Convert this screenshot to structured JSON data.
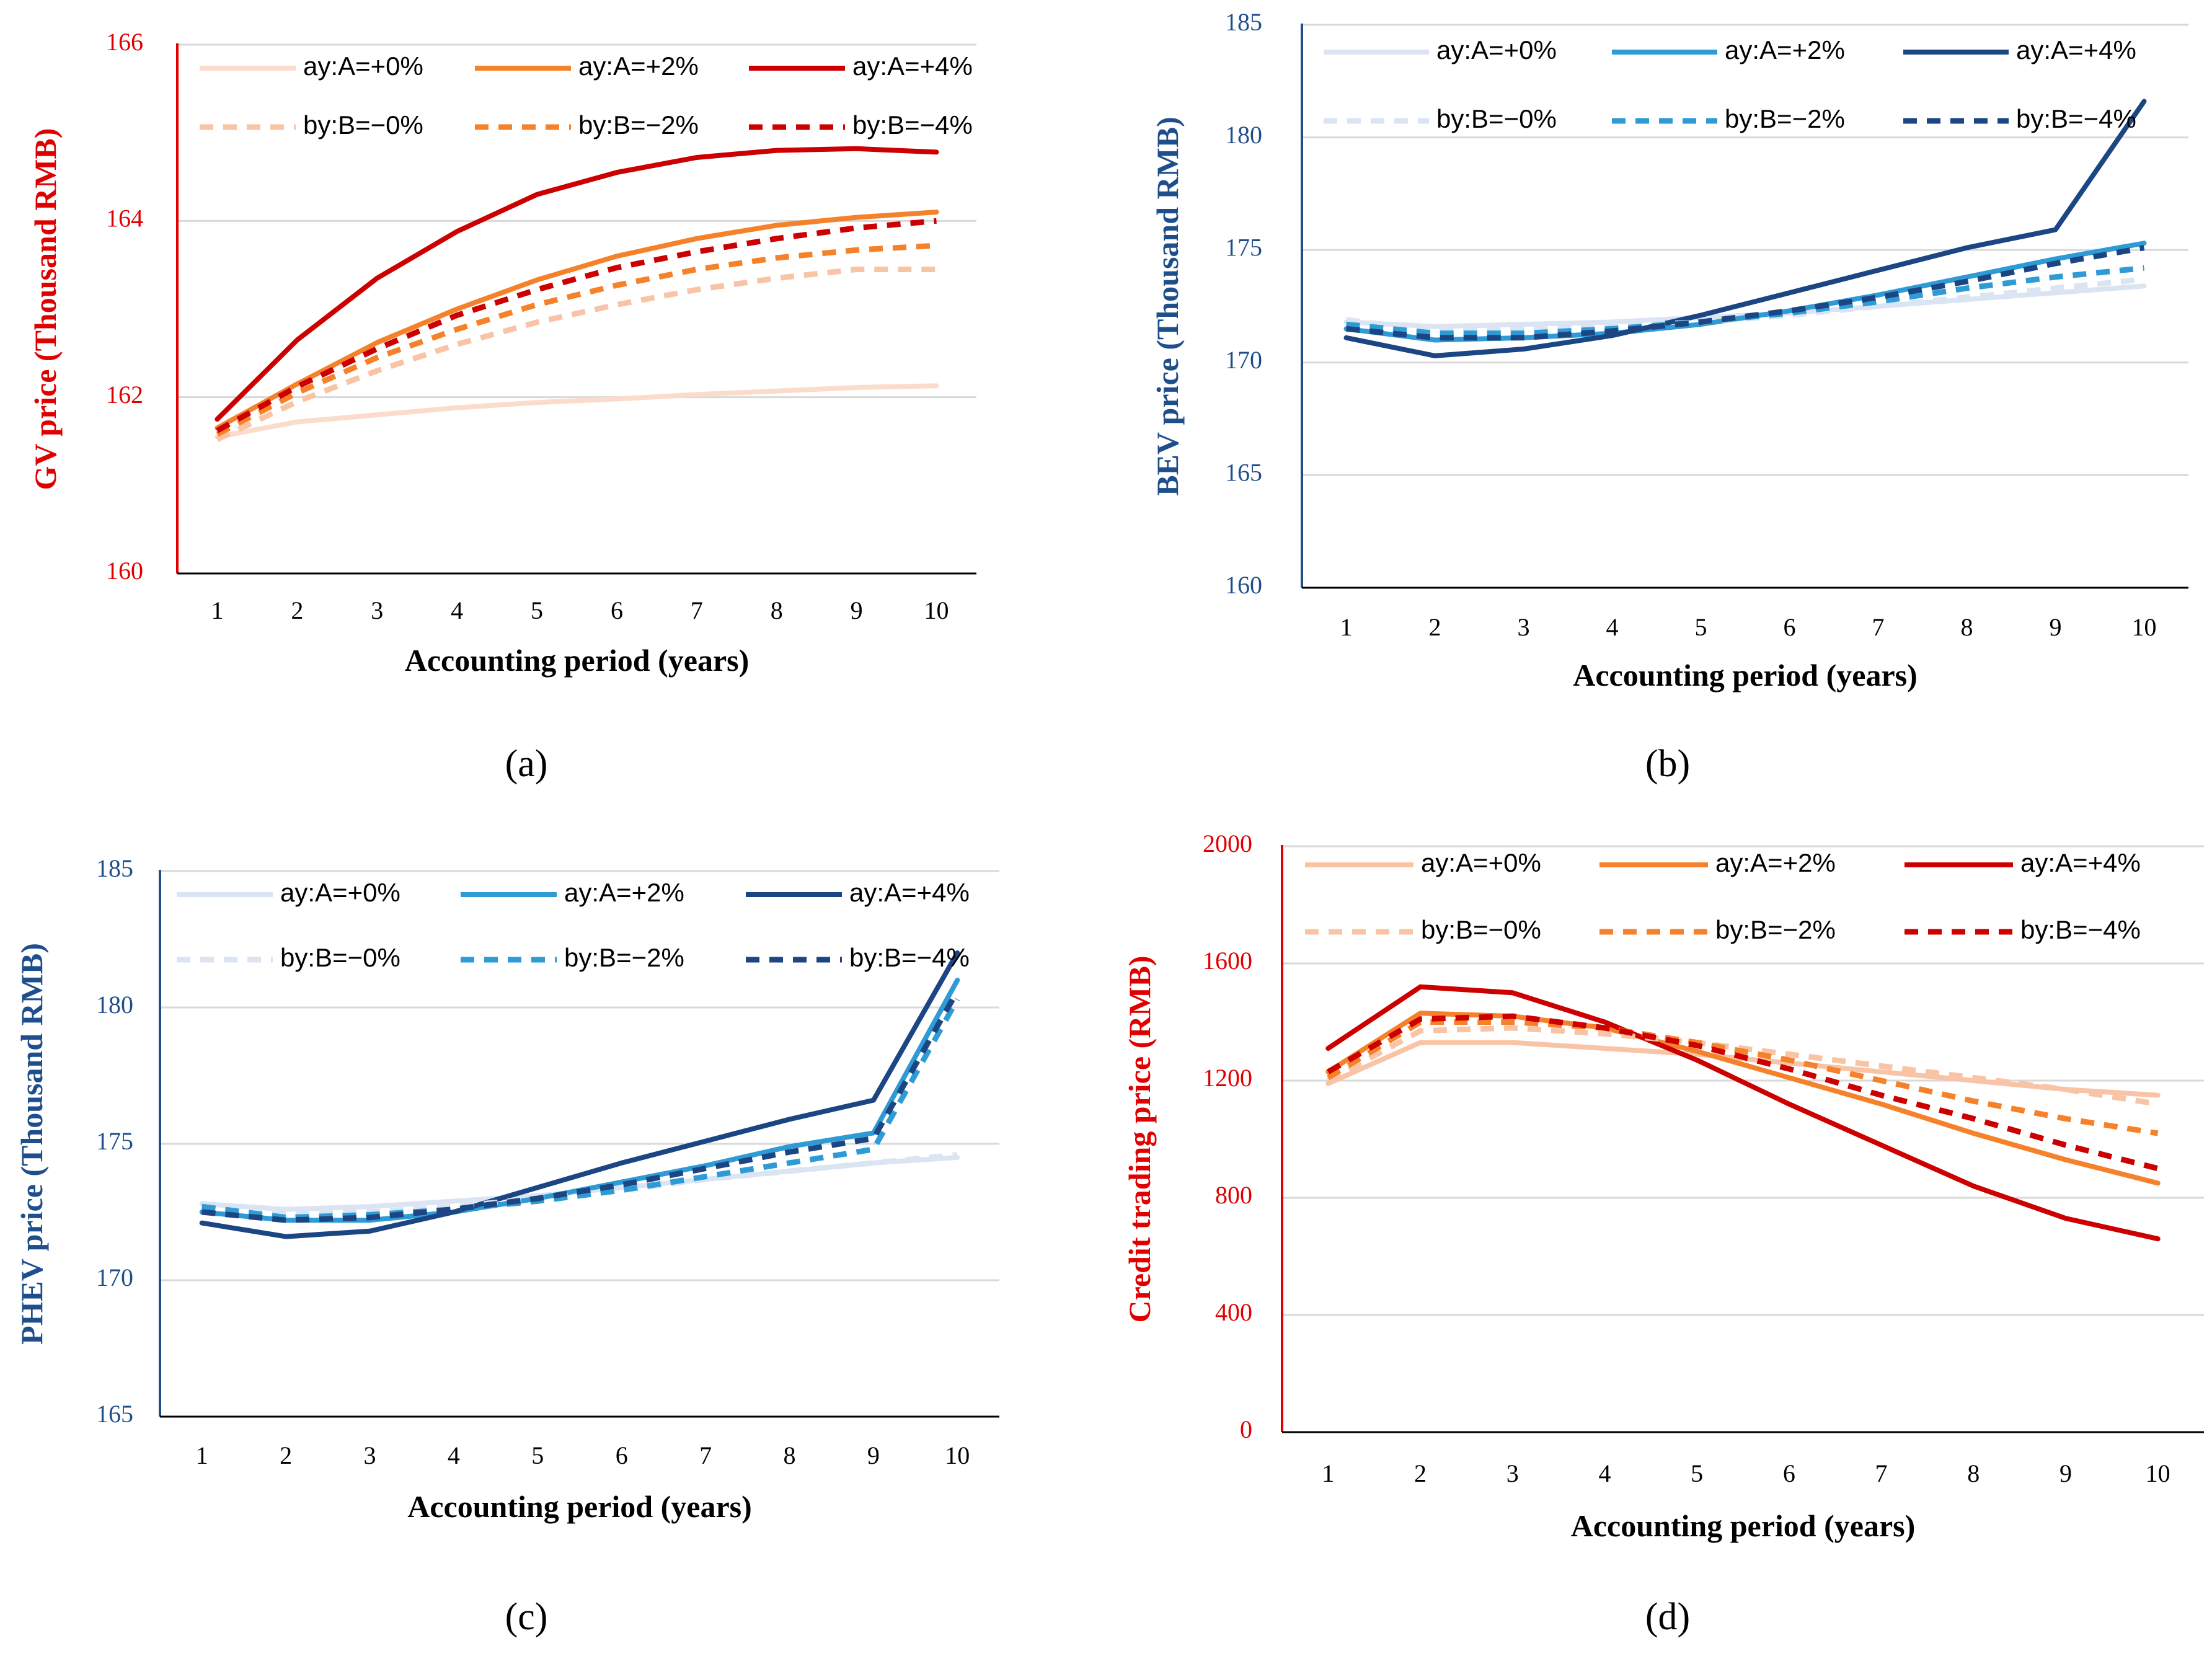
{
  "figure": {
    "xlabel": "Accounting period (years)",
    "legend_labels": [
      "ay:A=+0%",
      "ay:A=+2%",
      "ay:A=+4%",
      "by:B=−0%",
      "by:B=−2%",
      "by:B=−4%"
    ]
  },
  "chart_data": [
    {
      "id": "a",
      "panel_label": "(a)",
      "type": "line",
      "ylabel": "GV price (Thousand RMB)",
      "xlabel": "Accounting period (years)",
      "x": [
        1,
        2,
        3,
        4,
        5,
        6,
        7,
        8,
        9,
        10
      ],
      "ylim": [
        160,
        166
      ],
      "yticks": [
        160,
        162,
        164,
        166
      ],
      "grid": true,
      "axis_color": "#e00000",
      "series": [
        {
          "name": "ay:A=+0%",
          "color": "#fbdccb",
          "dash": false,
          "values": [
            161.55,
            161.72,
            161.8,
            161.88,
            161.94,
            161.98,
            162.03,
            162.07,
            162.11,
            162.13
          ]
        },
        {
          "name": "ay:A=+2%",
          "color": "#f5822a",
          "dash": false,
          "values": [
            161.65,
            162.15,
            162.62,
            163.0,
            163.33,
            163.6,
            163.8,
            163.95,
            164.04,
            164.1
          ]
        },
        {
          "name": "ay:A=+4%",
          "color": "#cc0000",
          "dash": false,
          "values": [
            161.75,
            162.65,
            163.35,
            163.88,
            164.3,
            164.55,
            164.72,
            164.8,
            164.82,
            164.78
          ]
        },
        {
          "name": "by:B=−0%",
          "color": "#f9c4a6",
          "dash": true,
          "values": [
            161.52,
            161.95,
            162.3,
            162.6,
            162.85,
            163.05,
            163.22,
            163.35,
            163.45,
            163.45
          ]
        },
        {
          "name": "by:B=−2%",
          "color": "#f5822a",
          "dash": true,
          "values": [
            161.58,
            162.05,
            162.45,
            162.77,
            163.05,
            163.27,
            163.45,
            163.58,
            163.67,
            163.72
          ]
        },
        {
          "name": "by:B=−4%",
          "color": "#cc0000",
          "dash": true,
          "values": [
            161.62,
            162.12,
            162.55,
            162.93,
            163.22,
            163.47,
            163.65,
            163.8,
            163.92,
            164.0
          ]
        }
      ]
    },
    {
      "id": "b",
      "panel_label": "(b)",
      "type": "line",
      "ylabel": "BEV price (Thousand RMB)",
      "xlabel": "Accounting period (years)",
      "x": [
        1,
        2,
        3,
        4,
        5,
        6,
        7,
        8,
        9,
        10
      ],
      "ylim": [
        160,
        185
      ],
      "yticks": [
        160,
        165,
        170,
        175,
        180,
        185
      ],
      "grid": true,
      "axis_color": "#1f4e8c",
      "series": [
        {
          "name": "ay:A=+0%",
          "color": "#dbe4f2",
          "dash": false,
          "values": [
            171.8,
            171.6,
            171.7,
            171.8,
            172.0,
            172.2,
            172.5,
            172.8,
            173.1,
            173.4
          ]
        },
        {
          "name": "ay:A=+2%",
          "color": "#2e9bd6",
          "dash": false,
          "values": [
            171.5,
            171.0,
            171.1,
            171.3,
            171.7,
            172.3,
            173.0,
            173.8,
            174.6,
            175.3
          ]
        },
        {
          "name": "ay:A=+4%",
          "color": "#1b4683",
          "dash": false,
          "values": [
            171.1,
            170.3,
            170.6,
            171.2,
            172.1,
            173.1,
            174.1,
            175.1,
            175.9,
            181.6
          ]
        },
        {
          "name": "by:B=−0%",
          "color": "#dbe4f2",
          "dash": true,
          "values": [
            171.9,
            171.4,
            171.5,
            171.6,
            171.8,
            172.1,
            172.5,
            172.9,
            173.3,
            173.7
          ]
        },
        {
          "name": "by:B=−2%",
          "color": "#2e9bd6",
          "dash": true,
          "values": [
            171.7,
            171.3,
            171.3,
            171.5,
            171.8,
            172.2,
            172.7,
            173.3,
            173.8,
            174.2
          ]
        },
        {
          "name": "by:B=−4%",
          "color": "#1b4683",
          "dash": true,
          "values": [
            171.5,
            171.1,
            171.1,
            171.4,
            171.8,
            172.3,
            172.9,
            173.6,
            174.4,
            175.1
          ]
        }
      ]
    },
    {
      "id": "c",
      "panel_label": "(c)",
      "type": "line",
      "ylabel": "PHEV price (Thousand RMB)",
      "xlabel": "Accounting period (years)",
      "x": [
        1,
        2,
        3,
        4,
        5,
        6,
        7,
        8,
        9,
        10
      ],
      "ylim": [
        165,
        185
      ],
      "yticks": [
        165,
        170,
        175,
        180,
        185
      ],
      "grid": true,
      "axis_color": "#1f4e8c",
      "series": [
        {
          "name": "ay:A=+0%",
          "color": "#dbe4f2",
          "dash": false,
          "values": [
            172.8,
            172.6,
            172.7,
            172.9,
            173.1,
            173.4,
            173.7,
            174.0,
            174.3,
            174.5
          ]
        },
        {
          "name": "ay:A=+2%",
          "color": "#2e9bd6",
          "dash": false,
          "values": [
            172.5,
            172.2,
            172.2,
            172.5,
            173.0,
            173.6,
            174.2,
            174.9,
            175.4,
            181.0
          ]
        },
        {
          "name": "ay:A=+4%",
          "color": "#1b4683",
          "dash": false,
          "values": [
            172.1,
            171.6,
            171.8,
            172.5,
            173.4,
            174.3,
            175.1,
            175.9,
            176.6,
            182.0
          ]
        },
        {
          "name": "by:B=−0%",
          "color": "#dbe4f2",
          "dash": true,
          "values": [
            172.8,
            172.5,
            172.5,
            172.7,
            173.0,
            173.3,
            173.7,
            174.0,
            174.3,
            174.6
          ]
        },
        {
          "name": "by:B=−2%",
          "color": "#2e9bd6",
          "dash": true,
          "values": [
            172.7,
            172.3,
            172.4,
            172.6,
            172.9,
            173.3,
            173.8,
            174.3,
            174.8,
            180.3
          ]
        },
        {
          "name": "by:B=−4%",
          "color": "#1b4683",
          "dash": true,
          "values": [
            172.5,
            172.2,
            172.3,
            172.6,
            173.0,
            173.5,
            174.1,
            174.7,
            175.2,
            180.6
          ]
        }
      ]
    },
    {
      "id": "d",
      "panel_label": "(d)",
      "type": "line",
      "ylabel": "Credit trading price (RMB)",
      "xlabel": "Accounting period (years)",
      "x": [
        1,
        2,
        3,
        4,
        5,
        6,
        7,
        8,
        9,
        10
      ],
      "ylim": [
        0,
        2000
      ],
      "yticks": [
        0,
        400,
        800,
        1200,
        1600,
        2000
      ],
      "grid": true,
      "axis_color": "#e00000",
      "series": [
        {
          "name": "ay:A=+0%",
          "color": "#f9c4a6",
          "dash": false,
          "values": [
            1190,
            1330,
            1330,
            1310,
            1290,
            1260,
            1230,
            1200,
            1170,
            1150
          ]
        },
        {
          "name": "ay:A=+2%",
          "color": "#f5822a",
          "dash": false,
          "values": [
            1230,
            1430,
            1420,
            1380,
            1300,
            1210,
            1120,
            1020,
            930,
            850
          ]
        },
        {
          "name": "ay:A=+4%",
          "color": "#cc0000",
          "dash": false,
          "values": [
            1310,
            1520,
            1500,
            1400,
            1270,
            1120,
            980,
            840,
            730,
            660
          ]
        },
        {
          "name": "by:B=−0%",
          "color": "#f9c4a6",
          "dash": true,
          "values": [
            1200,
            1370,
            1380,
            1360,
            1330,
            1290,
            1250,
            1210,
            1170,
            1120
          ]
        },
        {
          "name": "by:B=−2%",
          "color": "#f5822a",
          "dash": true,
          "values": [
            1210,
            1400,
            1400,
            1380,
            1330,
            1270,
            1200,
            1130,
            1070,
            1020
          ]
        },
        {
          "name": "by:B=−4%",
          "color": "#cc0000",
          "dash": true,
          "values": [
            1230,
            1410,
            1420,
            1380,
            1320,
            1240,
            1150,
            1070,
            980,
            900
          ]
        }
      ]
    }
  ]
}
